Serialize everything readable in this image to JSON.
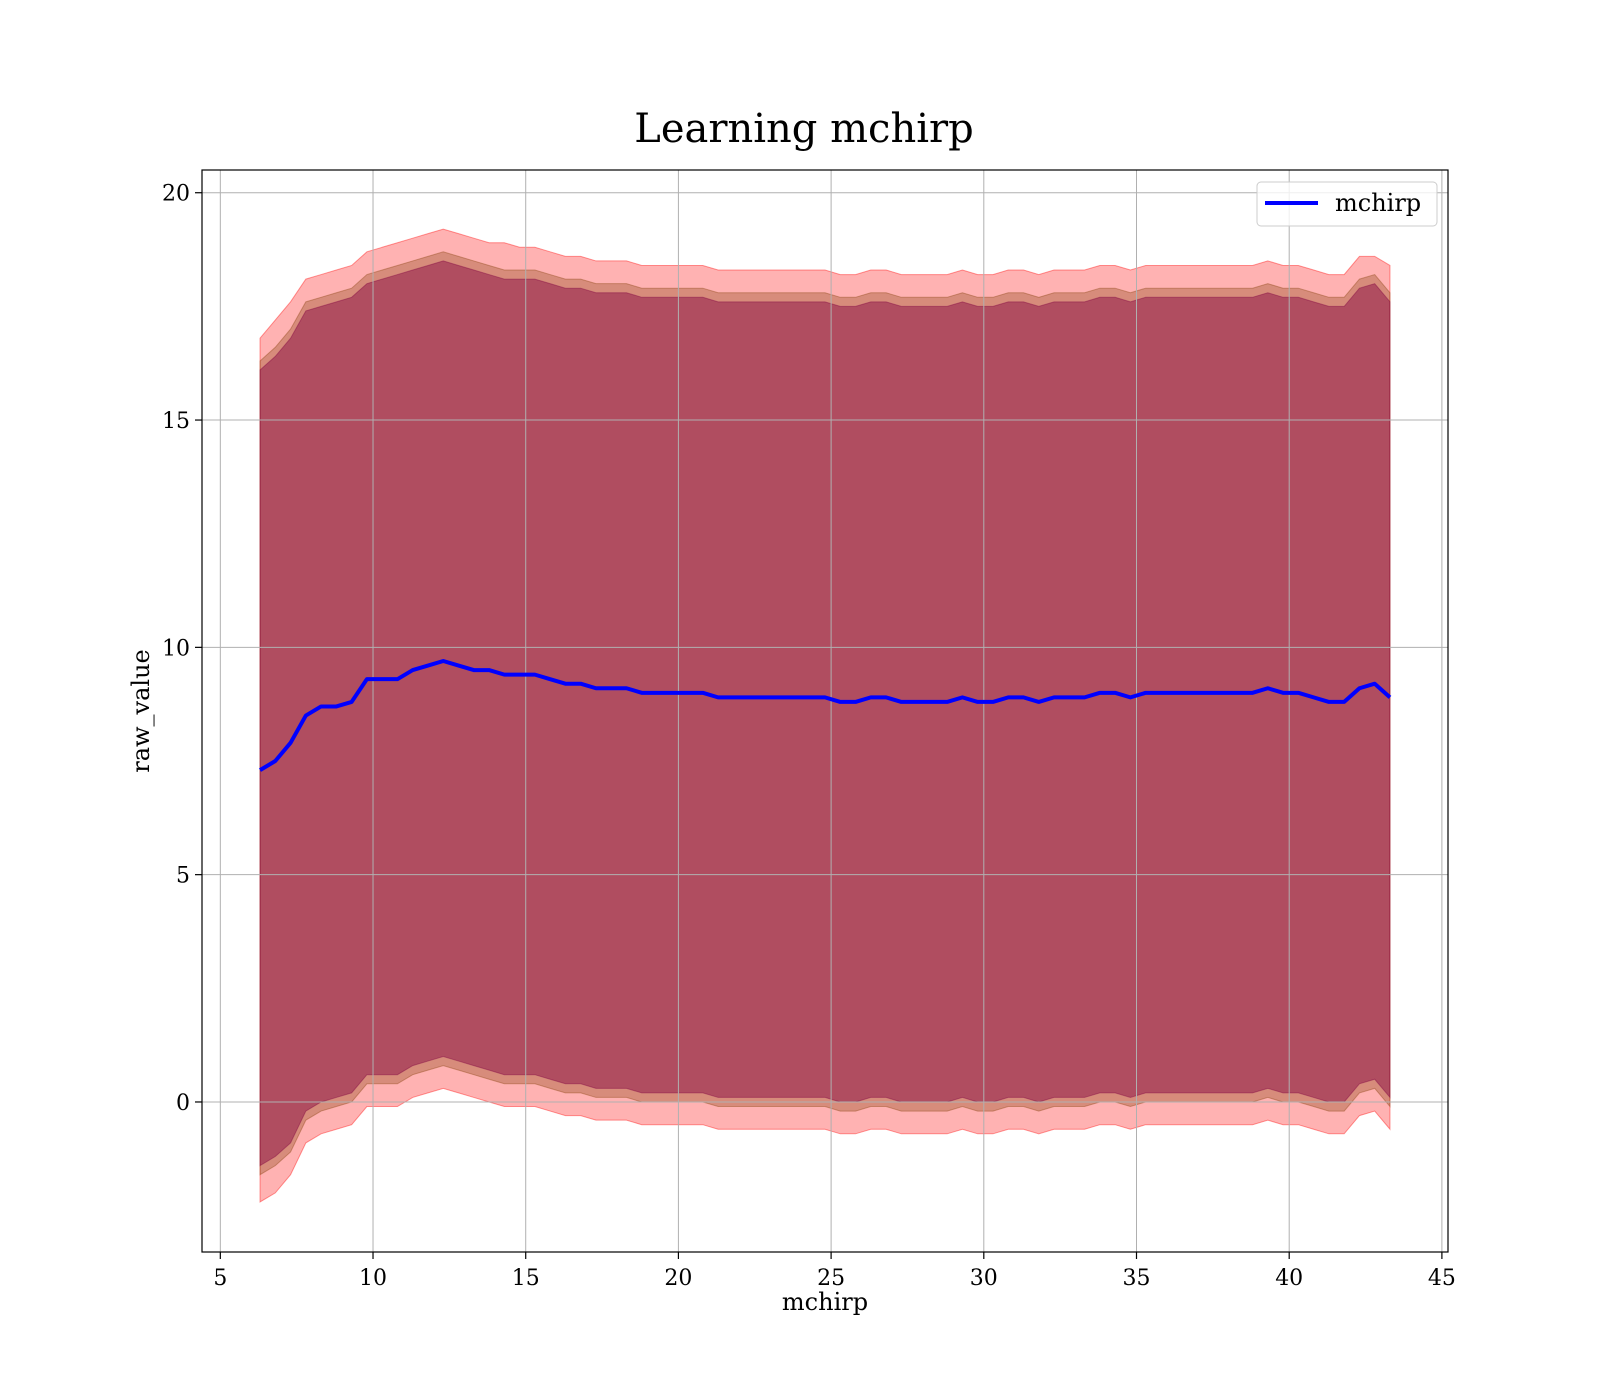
{
  "chart_data": {
    "type": "line",
    "title": "Learning mchirp",
    "xlabel": "mchirp",
    "ylabel": "raw_value",
    "xlim": [
      4.4,
      45.2
    ],
    "ylim": [
      -3.3,
      20.5
    ],
    "xticks": [
      5,
      10,
      15,
      20,
      25,
      30,
      35,
      40,
      45
    ],
    "yticks": [
      0,
      5,
      10,
      15,
      20
    ],
    "grid": true,
    "legend_position": "top-right",
    "series": [
      {
        "name": "mchirp",
        "color": "#0000ff",
        "x": [
          6.3,
          6.8,
          7.3,
          7.8,
          8.3,
          8.8,
          9.3,
          9.8,
          10.3,
          10.8,
          11.3,
          11.8,
          12.3,
          12.8,
          13.3,
          13.8,
          14.3,
          14.8,
          15.3,
          15.8,
          16.3,
          16.8,
          17.3,
          17.8,
          18.3,
          18.8,
          19.3,
          19.8,
          20.3,
          20.8,
          21.3,
          21.8,
          22.3,
          22.8,
          23.3,
          23.8,
          24.3,
          24.8,
          25.3,
          25.8,
          26.3,
          26.8,
          27.3,
          27.8,
          28.3,
          28.8,
          29.3,
          29.8,
          30.3,
          30.8,
          31.3,
          31.8,
          32.3,
          32.8,
          33.3,
          33.8,
          34.3,
          34.8,
          35.3,
          35.8,
          36.3,
          36.8,
          37.3,
          37.8,
          38.3,
          38.8,
          39.3,
          39.8,
          40.3,
          40.8,
          41.3,
          41.8,
          42.3,
          42.8,
          43.3
        ],
        "y": [
          7.3,
          7.5,
          7.9,
          8.5,
          8.7,
          8.7,
          8.8,
          9.3,
          9.3,
          9.3,
          9.5,
          9.6,
          9.7,
          9.6,
          9.5,
          9.5,
          9.4,
          9.4,
          9.4,
          9.3,
          9.2,
          9.2,
          9.1,
          9.1,
          9.1,
          9.0,
          9.0,
          9.0,
          9.0,
          9.0,
          8.9,
          8.9,
          8.9,
          8.9,
          8.9,
          8.9,
          8.9,
          8.9,
          8.8,
          8.8,
          8.9,
          8.9,
          8.8,
          8.8,
          8.8,
          8.8,
          8.9,
          8.8,
          8.8,
          8.9,
          8.9,
          8.8,
          8.9,
          8.9,
          8.9,
          9.0,
          9.0,
          8.9,
          9.0,
          9.0,
          9.0,
          9.0,
          9.0,
          9.0,
          9.0,
          9.0,
          9.1,
          9.0,
          9.0,
          8.9,
          8.8,
          8.8,
          9.1,
          9.2,
          8.9
        ]
      }
    ],
    "bands": [
      {
        "color": "#ff0000",
        "opacity": 0.3,
        "upper": [
          16.8,
          17.2,
          17.6,
          18.1,
          18.2,
          18.3,
          18.4,
          18.7,
          18.8,
          18.9,
          19.0,
          19.1,
          19.2,
          19.1,
          19.0,
          18.9,
          18.9,
          18.8,
          18.8,
          18.7,
          18.6,
          18.6,
          18.5,
          18.5,
          18.5,
          18.4,
          18.4,
          18.4,
          18.4,
          18.4,
          18.3,
          18.3,
          18.3,
          18.3,
          18.3,
          18.3,
          18.3,
          18.3,
          18.2,
          18.2,
          18.3,
          18.3,
          18.2,
          18.2,
          18.2,
          18.2,
          18.3,
          18.2,
          18.2,
          18.3,
          18.3,
          18.2,
          18.3,
          18.3,
          18.3,
          18.4,
          18.4,
          18.3,
          18.4,
          18.4,
          18.4,
          18.4,
          18.4,
          18.4,
          18.4,
          18.4,
          18.5,
          18.4,
          18.4,
          18.3,
          18.2,
          18.2,
          18.6,
          18.6,
          18.4
        ],
        "lower": [
          -2.2,
          -2.0,
          -1.6,
          -0.9,
          -0.7,
          -0.6,
          -0.5,
          -0.1,
          -0.1,
          -0.1,
          0.1,
          0.2,
          0.3,
          0.2,
          0.1,
          0.0,
          -0.1,
          -0.1,
          -0.1,
          -0.2,
          -0.3,
          -0.3,
          -0.4,
          -0.4,
          -0.4,
          -0.5,
          -0.5,
          -0.5,
          -0.5,
          -0.5,
          -0.6,
          -0.6,
          -0.6,
          -0.6,
          -0.6,
          -0.6,
          -0.6,
          -0.6,
          -0.7,
          -0.7,
          -0.6,
          -0.6,
          -0.7,
          -0.7,
          -0.7,
          -0.7,
          -0.6,
          -0.7,
          -0.7,
          -0.6,
          -0.6,
          -0.7,
          -0.6,
          -0.6,
          -0.6,
          -0.5,
          -0.5,
          -0.6,
          -0.5,
          -0.5,
          -0.5,
          -0.5,
          -0.5,
          -0.5,
          -0.5,
          -0.5,
          -0.4,
          -0.5,
          -0.5,
          -0.6,
          -0.7,
          -0.7,
          -0.3,
          -0.2,
          -0.6
        ]
      },
      {
        "color": "#8b4513",
        "opacity": 0.35,
        "upper": [
          16.3,
          16.6,
          17.0,
          17.6,
          17.7,
          17.8,
          17.9,
          18.2,
          18.3,
          18.4,
          18.5,
          18.6,
          18.7,
          18.6,
          18.5,
          18.4,
          18.3,
          18.3,
          18.3,
          18.2,
          18.1,
          18.1,
          18.0,
          18.0,
          18.0,
          17.9,
          17.9,
          17.9,
          17.9,
          17.9,
          17.8,
          17.8,
          17.8,
          17.8,
          17.8,
          17.8,
          17.8,
          17.8,
          17.7,
          17.7,
          17.8,
          17.8,
          17.7,
          17.7,
          17.7,
          17.7,
          17.8,
          17.7,
          17.7,
          17.8,
          17.8,
          17.7,
          17.8,
          17.8,
          17.8,
          17.9,
          17.9,
          17.8,
          17.9,
          17.9,
          17.9,
          17.9,
          17.9,
          17.9,
          17.9,
          17.9,
          18.0,
          17.9,
          17.9,
          17.8,
          17.7,
          17.7,
          18.1,
          18.2,
          17.8
        ],
        "lower": [
          -1.6,
          -1.4,
          -1.1,
          -0.4,
          -0.2,
          -0.1,
          0.0,
          0.4,
          0.4,
          0.4,
          0.6,
          0.7,
          0.8,
          0.7,
          0.6,
          0.5,
          0.4,
          0.4,
          0.4,
          0.3,
          0.2,
          0.2,
          0.1,
          0.1,
          0.1,
          0.0,
          0.0,
          0.0,
          0.0,
          0.0,
          -0.1,
          -0.1,
          -0.1,
          -0.1,
          -0.1,
          -0.1,
          -0.1,
          -0.1,
          -0.2,
          -0.2,
          -0.1,
          -0.1,
          -0.2,
          -0.2,
          -0.2,
          -0.2,
          -0.1,
          -0.2,
          -0.2,
          -0.1,
          -0.1,
          -0.2,
          -0.1,
          -0.1,
          -0.1,
          0.0,
          0.0,
          -0.1,
          0.0,
          0.0,
          0.0,
          0.0,
          0.0,
          0.0,
          0.0,
          0.0,
          0.1,
          0.0,
          0.0,
          -0.1,
          -0.2,
          -0.2,
          0.2,
          0.3,
          -0.1
        ]
      },
      {
        "color": "#800040",
        "opacity": 0.45,
        "upper": [
          16.1,
          16.4,
          16.8,
          17.4,
          17.5,
          17.6,
          17.7,
          18.0,
          18.1,
          18.2,
          18.3,
          18.4,
          18.5,
          18.4,
          18.3,
          18.2,
          18.1,
          18.1,
          18.1,
          18.0,
          17.9,
          17.9,
          17.8,
          17.8,
          17.8,
          17.7,
          17.7,
          17.7,
          17.7,
          17.7,
          17.6,
          17.6,
          17.6,
          17.6,
          17.6,
          17.6,
          17.6,
          17.6,
          17.5,
          17.5,
          17.6,
          17.6,
          17.5,
          17.5,
          17.5,
          17.5,
          17.6,
          17.5,
          17.5,
          17.6,
          17.6,
          17.5,
          17.6,
          17.6,
          17.6,
          17.7,
          17.7,
          17.6,
          17.7,
          17.7,
          17.7,
          17.7,
          17.7,
          17.7,
          17.7,
          17.7,
          17.8,
          17.7,
          17.7,
          17.6,
          17.5,
          17.5,
          17.9,
          18.0,
          17.6
        ],
        "lower": [
          -1.4,
          -1.2,
          -0.9,
          -0.2,
          0.0,
          0.1,
          0.2,
          0.6,
          0.6,
          0.6,
          0.8,
          0.9,
          1.0,
          0.9,
          0.8,
          0.7,
          0.6,
          0.6,
          0.6,
          0.5,
          0.4,
          0.4,
          0.3,
          0.3,
          0.3,
          0.2,
          0.2,
          0.2,
          0.2,
          0.2,
          0.1,
          0.1,
          0.1,
          0.1,
          0.1,
          0.1,
          0.1,
          0.1,
          0.0,
          0.0,
          0.1,
          0.1,
          0.0,
          0.0,
          0.0,
          0.0,
          0.1,
          0.0,
          0.0,
          0.1,
          0.1,
          0.0,
          0.1,
          0.1,
          0.1,
          0.2,
          0.2,
          0.1,
          0.2,
          0.2,
          0.2,
          0.2,
          0.2,
          0.2,
          0.2,
          0.2,
          0.3,
          0.2,
          0.2,
          0.1,
          0.0,
          0.0,
          0.4,
          0.5,
          0.1
        ]
      }
    ]
  }
}
